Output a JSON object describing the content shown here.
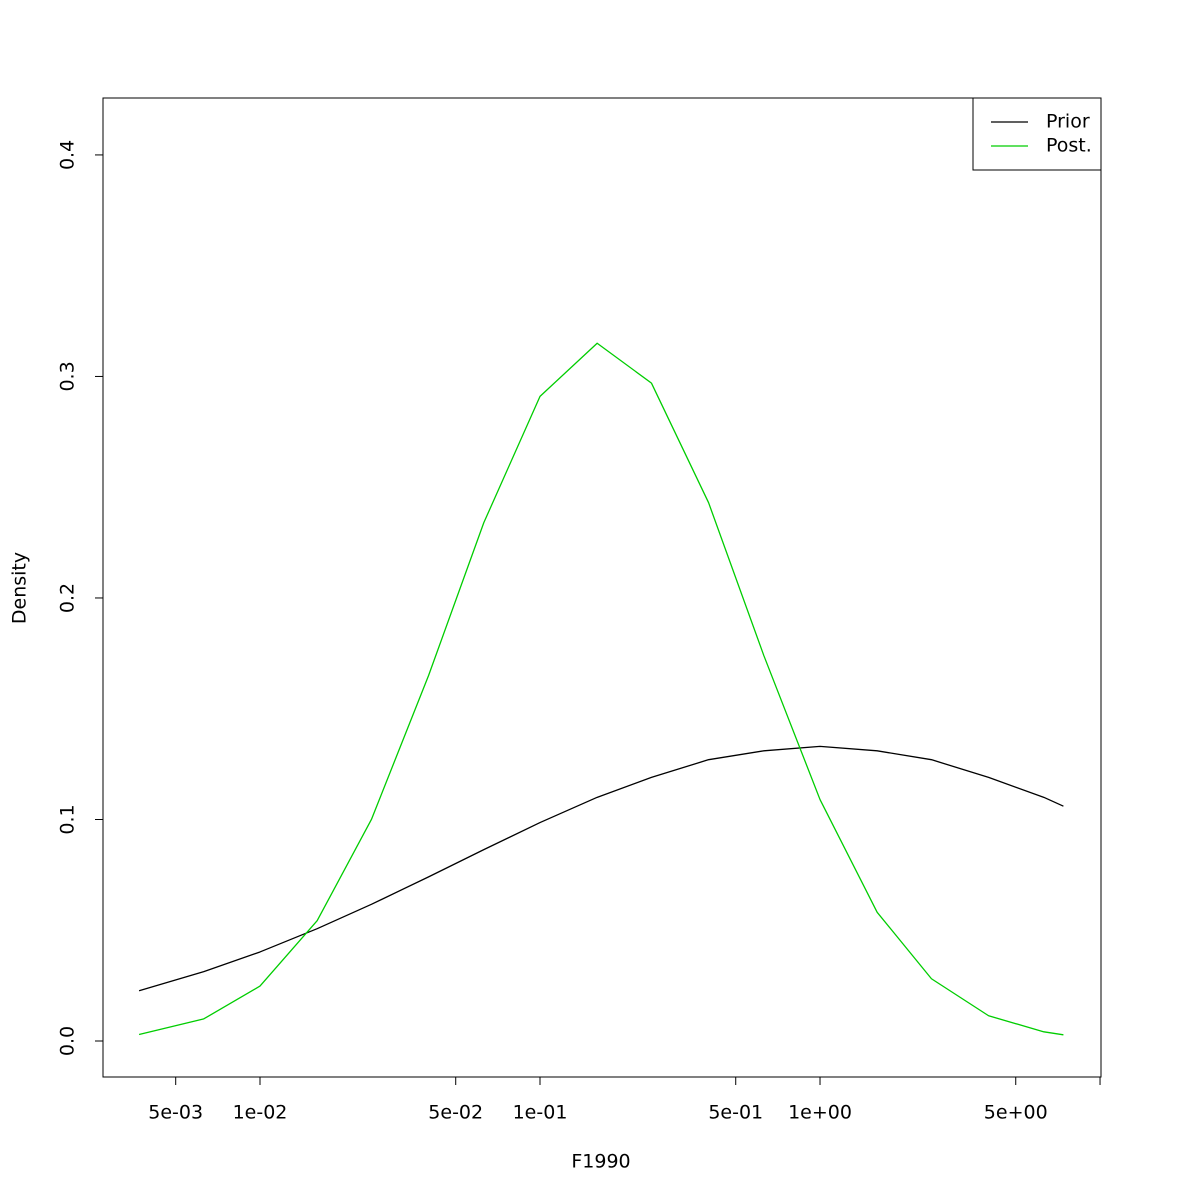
{
  "chart_data": {
    "type": "line",
    "x_label": "F1990",
    "y_label": "Density",
    "xlog": true,
    "x": [
      0.0037,
      0.0063,
      0.01,
      0.016,
      0.025,
      0.04,
      0.063,
      0.1,
      0.16,
      0.25,
      0.4,
      0.63,
      1,
      1.6,
      2.5,
      4,
      6.3,
      7.4
    ],
    "series": [
      {
        "name": "Prior",
        "color": "#000000",
        "values": [
          0.0227,
          0.0313,
          0.0402,
          0.0507,
          0.0617,
          0.0741,
          0.0864,
          0.0986,
          0.11,
          0.119,
          0.127,
          0.131,
          0.133,
          0.131,
          0.127,
          0.119,
          0.11,
          0.106
        ]
      },
      {
        "name": "Post.",
        "color": "#00cd00",
        "values": [
          0.00295,
          0.01,
          0.0248,
          0.0543,
          0.1,
          0.165,
          0.234,
          0.291,
          0.315,
          0.297,
          0.243,
          0.174,
          0.109,
          0.0581,
          0.0281,
          0.0114,
          0.00414,
          0.0028
        ]
      }
    ],
    "xlim": [
      0.00275,
      10.08
    ],
    "xticks": [
      {
        "value": 0.005,
        "label": "5e-03"
      },
      {
        "value": 0.01,
        "label": "1e-02"
      },
      {
        "value": 0.05,
        "label": "5e-02"
      },
      {
        "value": 0.1,
        "label": "1e-01"
      },
      {
        "value": 0.5,
        "label": "5e-01"
      },
      {
        "value": 1,
        "label": "1e+00"
      },
      {
        "value": 5,
        "label": "5e+00"
      },
      {
        "value": 10,
        "label": null
      }
    ],
    "ylim": [
      -0.01625,
      0.4257
    ],
    "yticks": [
      {
        "value": 0,
        "label": "0.0"
      },
      0.1,
      0.2,
      0.3,
      0.4
    ],
    "legend": "top-right"
  }
}
